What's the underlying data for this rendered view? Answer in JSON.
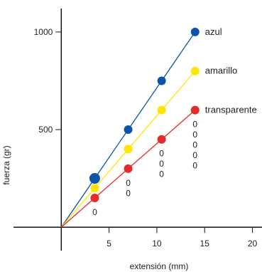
{
  "chart_data": {
    "type": "scatter",
    "xlabel": "extensión (mm)",
    "ylabel": "fuerza (gr)",
    "xlim": [
      -5,
      21
    ],
    "ylim": [
      -120,
      1120
    ],
    "xticks": [
      5,
      10,
      15,
      20
    ],
    "yticks": [
      500,
      1000
    ],
    "grid": false,
    "legend": "right of line ends",
    "series": [
      {
        "name": "azul",
        "color": "#0a55a8",
        "points": [
          [
            3.5,
            250
          ],
          [
            7,
            500
          ],
          [
            10.5,
            750
          ],
          [
            14,
            1000
          ]
        ]
      },
      {
        "name": "amarillo",
        "color": "#ffe600",
        "points": [
          [
            3.5,
            200
          ],
          [
            7,
            400
          ],
          [
            10.5,
            600
          ],
          [
            14,
            800
          ]
        ]
      },
      {
        "name": "transparente",
        "color": "#e52a2a",
        "points": [
          [
            3.5,
            150
          ],
          [
            7,
            300
          ],
          [
            10.5,
            450
          ],
          [
            14,
            600
          ]
        ]
      }
    ],
    "annotations": [
      {
        "x": 3.5,
        "lines": [
          "0"
        ]
      },
      {
        "x": 7,
        "lines": [
          "0",
          "0"
        ]
      },
      {
        "x": 10.5,
        "lines": [
          "0",
          "0",
          "0"
        ]
      },
      {
        "x": 14,
        "lines": [
          "0",
          "0",
          "0",
          "0",
          "0"
        ]
      }
    ]
  }
}
